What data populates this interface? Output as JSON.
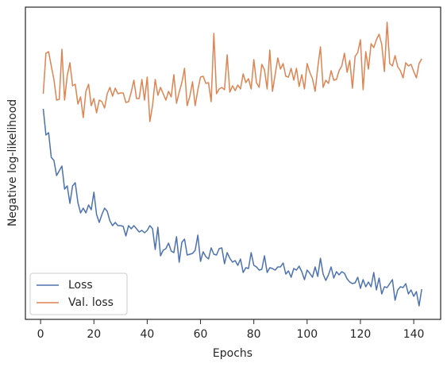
{
  "chart_data": {
    "type": "line",
    "xlabel": "Epochs",
    "ylabel": "Negative log-likelihood",
    "x": [
      1,
      2,
      3,
      4,
      5,
      6,
      7,
      8,
      9,
      10,
      11,
      12,
      13,
      14,
      15,
      16,
      17,
      18,
      19,
      20,
      21,
      22,
      23,
      24,
      25,
      26,
      27,
      28,
      29,
      30,
      31,
      32,
      33,
      34,
      35,
      36,
      37,
      38,
      39,
      40,
      41,
      42,
      43,
      44,
      45,
      46,
      47,
      48,
      49,
      50,
      51,
      52,
      53,
      54,
      55,
      56,
      57,
      58,
      59,
      60,
      61,
      62,
      63,
      64,
      65,
      66,
      67,
      68,
      69,
      70,
      71,
      72,
      73,
      74,
      75,
      76,
      77,
      78,
      79,
      80,
      81,
      82,
      83,
      84,
      85,
      86,
      87,
      88,
      89,
      90,
      91,
      92,
      93,
      94,
      95,
      96,
      97,
      98,
      99,
      100,
      101,
      102,
      103,
      104,
      105,
      106,
      107,
      108,
      109,
      110,
      111,
      112,
      113,
      114,
      115,
      116,
      117,
      118,
      119,
      120,
      121,
      122,
      123,
      124,
      125,
      126,
      127,
      128,
      129,
      130,
      131,
      132,
      133,
      134,
      135,
      136,
      137,
      138,
      139,
      140,
      141,
      142,
      143
    ],
    "series": [
      {
        "name": "Loss",
        "color": "#4c72b0",
        "values": [
          265,
          232,
          235,
          204,
          200,
          181,
          187,
          193,
          164,
          168,
          146,
          168,
          172,
          147,
          134,
          140,
          134,
          144,
          138,
          160,
          132,
          122,
          132,
          140,
          136,
          124,
          118,
          122,
          118,
          118,
          117,
          105,
          118,
          114,
          118,
          114,
          110,
          112,
          109,
          112,
          118,
          114,
          88,
          116,
          80,
          87,
          89,
          96,
          86,
          84,
          104,
          72,
          97,
          101,
          81,
          82,
          83,
          87,
          106,
          73,
          85,
          79,
          76,
          90,
          82,
          81,
          89,
          90,
          70,
          84,
          77,
          72,
          74,
          68,
          76,
          59,
          65,
          64,
          84,
          68,
          66,
          62,
          63,
          80,
          59,
          65,
          64,
          62,
          66,
          66,
          71,
          57,
          61,
          53,
          64,
          62,
          67,
          60,
          50,
          62,
          58,
          53,
          66,
          54,
          77,
          57,
          49,
          56,
          66,
          52,
          60,
          56,
          60,
          58,
          51,
          47,
          45,
          46,
          53,
          39,
          50,
          41,
          47,
          41,
          59,
          37,
          52,
          32,
          41,
          40,
          45,
          50,
          24,
          37,
          41,
          40,
          45,
          32,
          37,
          29,
          35,
          17,
          38
        ]
      },
      {
        "name": "Val. loss",
        "color": "#dd8452",
        "values": [
          284,
          335,
          337,
          319,
          302,
          276,
          277,
          340,
          276,
          307,
          323,
          294,
          296,
          271,
          280,
          254,
          287,
          296,
          269,
          278,
          260,
          276,
          274,
          266,
          284,
          292,
          281,
          291,
          284,
          285,
          285,
          273,
          274,
          286,
          301,
          278,
          278,
          302,
          276,
          305,
          249,
          269,
          302,
          282,
          292,
          284,
          276,
          287,
          280,
          308,
          272,
          286,
          298,
          316,
          269,
          281,
          299,
          269,
          289,
          305,
          306,
          297,
          298,
          274,
          360,
          284,
          290,
          292,
          289,
          333,
          286,
          294,
          288,
          295,
          290,
          309,
          298,
          303,
          290,
          327,
          298,
          292,
          321,
          314,
          290,
          339,
          287,
          308,
          329,
          315,
          322,
          306,
          305,
          316,
          301,
          316,
          293,
          308,
          290,
          322,
          311,
          303,
          287,
          317,
          343,
          292,
          301,
          297,
          313,
          301,
          302,
          313,
          319,
          335,
          311,
          326,
          291,
          331,
          336,
          352,
          289,
          337,
          315,
          347,
          342,
          352,
          359,
          346,
          312,
          374,
          322,
          319,
          332,
          318,
          313,
          304,
          323,
          319,
          321,
          312,
          304,
          322,
          328
        ]
      }
    ],
    "xlim": [
      -5.7,
      150.1
    ],
    "xticks": [
      0,
      20,
      40,
      60,
      80,
      100,
      120,
      140
    ],
    "ylim": [
      0,
      393
    ],
    "legend": "lower left"
  }
}
